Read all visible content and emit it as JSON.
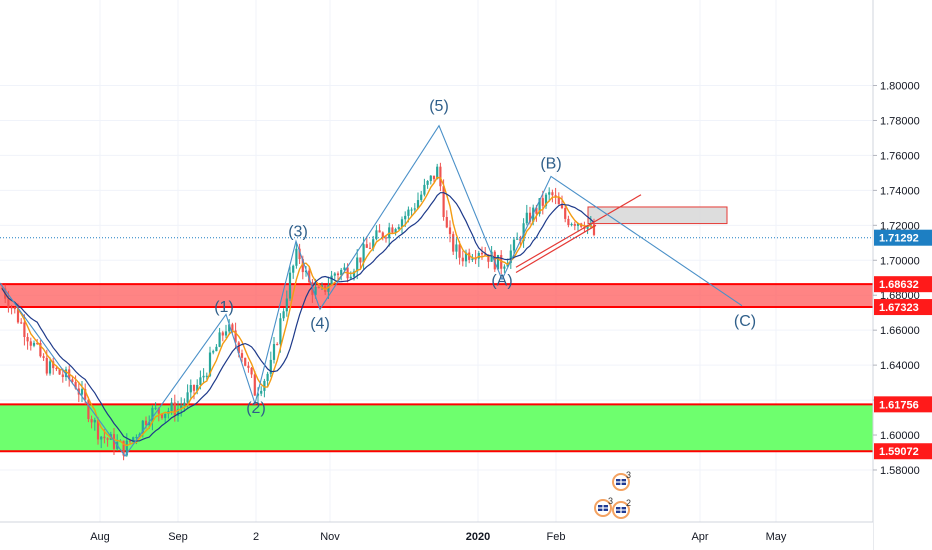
{
  "chart_data": {
    "type": "candlestick",
    "y_axis": {
      "ticks": [
        "1.80000",
        "1.78000",
        "1.76000",
        "1.74000",
        "1.72000",
        "1.70000",
        "1.68000",
        "1.66000",
        "1.64000",
        "1.62000",
        "1.60000",
        "1.58000"
      ],
      "range": [
        1.572,
        1.807
      ]
    },
    "x_axis": {
      "ticks": [
        "Aug",
        "Sep",
        "2",
        "Nov",
        "2020",
        "Feb",
        "Apr",
        "May"
      ]
    },
    "last_price": {
      "value": 1.71292,
      "label": "1.71292"
    },
    "zones": [
      {
        "kind": "resistance",
        "top": 1.68632,
        "bottom": 1.67323,
        "top_label": "1.68632",
        "bottom_label": "1.67323",
        "fill": "#ff5b5b"
      },
      {
        "kind": "support",
        "top": 1.61756,
        "bottom": 1.59072,
        "top_label": "1.61756",
        "bottom_label": "1.59072",
        "fill": "#66ff66"
      }
    ],
    "wave_labels": [
      {
        "text": "(1)",
        "y": 1.6705
      },
      {
        "text": "(2)",
        "y": 1.6125
      },
      {
        "text": "(3)",
        "y": 1.7135
      },
      {
        "text": "(4)",
        "y": 1.661
      },
      {
        "text": "(5)",
        "y": 1.7855
      },
      {
        "text": "(A)",
        "y": 1.6855
      },
      {
        "text": "(B)",
        "y": 1.7525
      },
      {
        "text": "(C)",
        "y": 1.6625
      }
    ],
    "wave_path": [
      1.588,
      1.669,
      1.618,
      1.711,
      1.672,
      1.777,
      1.689,
      1.748,
      1.674
    ],
    "gray_box": {
      "top": 1.7305,
      "bottom": 1.721
    },
    "event_badges": [
      "3",
      "3",
      "2"
    ],
    "colors": {
      "up": "#26a69a",
      "down": "#ef5350",
      "wave": "#4a90c8",
      "ma_fast": "#f39c12",
      "ma_slow": "#1e3a8a",
      "trend": "#e53935",
      "last_price_bg": "#1d7fc3"
    }
  }
}
